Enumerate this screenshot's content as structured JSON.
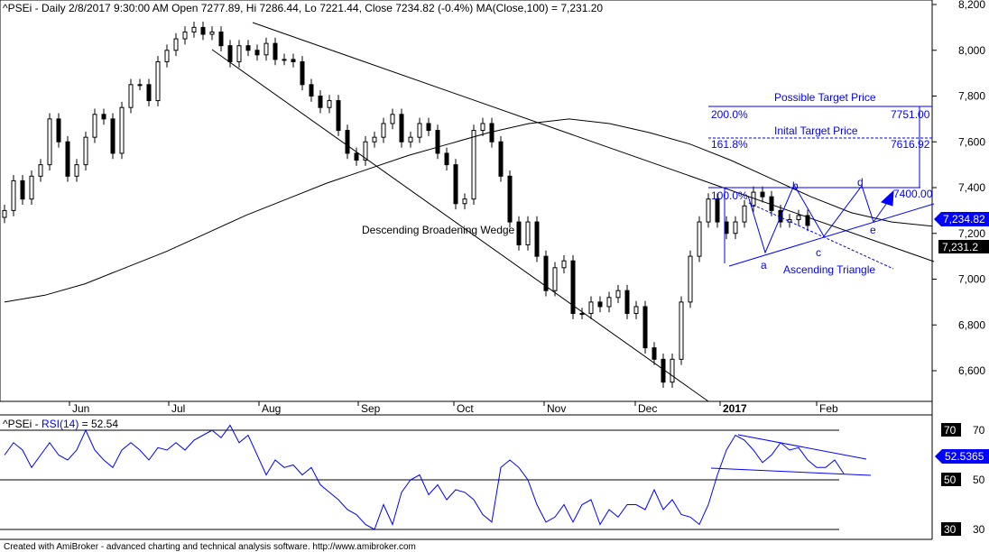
{
  "header": {
    "symbol": "^PSEi",
    "title": "^PSEi - Daily 2/8/2017 9:30:00 AM Open 7277.89, Hi 7286.44, Lo 7221.44, Close 7234.82 (-0.4%) MA(Close,100) = 7,231.20"
  },
  "rsi_header": {
    "prefix": "^PSEi - ",
    "indicator": "RSI(14)",
    "value": " = 52.54"
  },
  "footer": "Created with AmiBroker - advanced charting and technical analysis software. http://www.amibroker.com",
  "colors": {
    "annotation": "#0000ff",
    "candle": "#000000",
    "rsi": "#0000ff"
  },
  "annotations": {
    "wedge": "Descending Broadening Wedge",
    "triangle": "Ascending Triangle",
    "possible_target": "Possible Target Price",
    "initial_target": "Inital Target Price",
    "fib_200": "200.0%",
    "fib_200_value": "7751.00",
    "fib_161": "161.8%",
    "fib_161_value": "7616.92",
    "fib_100": "100.0%",
    "fib_100_value": "7400.00",
    "points": [
      "a",
      "b",
      "c",
      "d",
      "e"
    ]
  },
  "chart_data": [
    {
      "type": "candlestick",
      "panel": "price",
      "ylim": [
        6500,
        8200
      ],
      "y_ticks": [
        "8,200",
        "8,000",
        "7,800",
        "7,600",
        "7,400",
        "7,200",
        "7,000",
        "6,800",
        "6,600"
      ],
      "y_tick_values": [
        8200,
        8000,
        7800,
        7600,
        7400,
        7200,
        7000,
        6800,
        6600
      ],
      "x_ticks": [
        "Jun",
        "Jul",
        "Aug",
        "Sep",
        "Oct",
        "Nov",
        "Dec",
        "2017",
        "Feb"
      ],
      "closes": [
        7300,
        7430,
        7350,
        7450,
        7500,
        7700,
        7600,
        7450,
        7500,
        7620,
        7720,
        7700,
        7550,
        7750,
        7850,
        7850,
        7780,
        7950,
        8000,
        8050,
        8080,
        8100,
        8070,
        8080,
        8020,
        7950,
        8020,
        8000,
        7980,
        8030,
        7960,
        7960,
        7950,
        7850,
        7800,
        7750,
        7780,
        7650,
        7550,
        7520,
        7600,
        7620,
        7680,
        7720,
        7600,
        7620,
        7680,
        7650,
        7550,
        7500,
        7330,
        7350,
        7650,
        7680,
        7600,
        7450,
        7250,
        7150,
        7250,
        7100,
        6950,
        7050,
        7080,
        6850,
        6850,
        6900,
        6880,
        6920,
        6950,
        6850,
        6880,
        6700,
        6650,
        6550,
        6650,
        6900,
        7100,
        7250,
        7350,
        7250,
        7200,
        7250,
        7320,
        7380,
        7360,
        7300,
        7250,
        7260,
        7277.89,
        7234.82
      ],
      "ma_label": "MA(Close,100)",
      "ma100": [
        6900,
        6930,
        6980,
        7050,
        7120,
        7200,
        7280,
        7350,
        7420,
        7480,
        7540,
        7590,
        7640,
        7680,
        7700,
        7680,
        7640,
        7590,
        7520,
        7440,
        7360,
        7290,
        7250,
        7231.2
      ],
      "last_close": "7,234.82",
      "last_ma": "7,231.2"
    },
    {
      "type": "line",
      "panel": "rsi",
      "name": "RSI(14)",
      "ylim": [
        25,
        75
      ],
      "y_ticks": [
        "70",
        "50",
        "30"
      ],
      "y_tick_values": [
        70,
        50,
        30
      ],
      "last_value": "52.5365",
      "values": [
        60,
        65,
        62,
        55,
        60,
        65,
        60,
        58,
        62,
        70,
        62,
        58,
        55,
        62,
        65,
        62,
        58,
        63,
        62,
        65,
        62,
        66,
        68,
        70,
        67,
        72,
        65,
        68,
        60,
        52,
        58,
        55,
        56,
        52,
        55,
        48,
        45,
        42,
        38,
        36,
        32,
        30,
        40,
        32,
        45,
        50,
        52,
        44,
        48,
        42,
        46,
        45,
        42,
        36,
        33,
        55,
        58,
        55,
        50,
        40,
        33,
        35,
        40,
        33,
        40,
        42,
        32,
        38,
        35,
        40,
        40,
        38,
        46,
        38,
        42,
        36,
        35,
        32,
        40,
        52,
        62,
        68,
        66,
        62,
        57,
        60,
        65,
        62,
        63,
        58,
        55,
        55,
        58,
        52.54
      ]
    }
  ]
}
